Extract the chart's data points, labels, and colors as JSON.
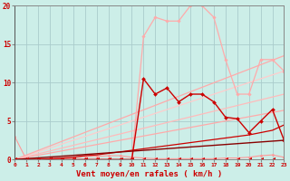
{
  "background_color": "#cceee8",
  "grid_color": "#aacccc",
  "x_min": 0,
  "x_max": 23,
  "y_min": 0,
  "y_max": 20,
  "xlabel": "Vent moyen/en rafales ( km/h )",
  "xlabel_color": "#cc0000",
  "tick_color": "#cc0000",
  "series": [
    {
      "x": [
        0,
        1,
        2,
        3,
        4,
        5,
        6,
        7,
        8,
        9,
        10,
        11,
        12,
        13,
        14,
        15,
        16,
        17,
        18,
        19,
        20,
        21,
        22,
        23
      ],
      "y": [
        3,
        0,
        0,
        0.1,
        0.2,
        0.3,
        0.4,
        0.4,
        0.5,
        0.5,
        0.3,
        0.2,
        0.1,
        0.1,
        0.1,
        0.1,
        0.1,
        0.1,
        0.2,
        0.2,
        0.3,
        0.5,
        0.6,
        0.3
      ],
      "color": "#ff9999",
      "lw": 0.8,
      "marker": "D",
      "ms": 1.5
    },
    {
      "x": [
        0,
        23
      ],
      "y": [
        0,
        6.4
      ],
      "color": "#ffaaaa",
      "lw": 0.9,
      "marker": null,
      "ms": 0
    },
    {
      "x": [
        0,
        23
      ],
      "y": [
        0,
        8.5
      ],
      "color": "#ffbbbb",
      "lw": 0.9,
      "marker": null,
      "ms": 0
    },
    {
      "x": [
        0,
        23
      ],
      "y": [
        0,
        11.5
      ],
      "color": "#ffcccc",
      "lw": 0.9,
      "marker": null,
      "ms": 0
    },
    {
      "x": [
        0,
        23
      ],
      "y": [
        0,
        13.5
      ],
      "color": "#ffaaaa",
      "lw": 0.9,
      "marker": null,
      "ms": 0
    },
    {
      "x": [
        0,
        1,
        2,
        3,
        4,
        5,
        6,
        7,
        8,
        9,
        10,
        11,
        12,
        13,
        14,
        15,
        16,
        17,
        18,
        19,
        20,
        21,
        22,
        23
      ],
      "y": [
        0,
        0,
        0,
        0,
        0,
        0,
        0,
        0,
        0,
        0,
        0,
        16.0,
        18.5,
        18.0,
        18.0,
        20.0,
        20.0,
        18.5,
        13.0,
        8.5,
        8.5,
        13.0,
        13.0,
        11.5
      ],
      "color": "#ffaaaa",
      "lw": 0.9,
      "marker": "D",
      "ms": 1.8
    },
    {
      "x": [
        0,
        1,
        2,
        3,
        4,
        5,
        6,
        7,
        8,
        9,
        10,
        11,
        12,
        13,
        14,
        15,
        16,
        17,
        18,
        19,
        20,
        21,
        22,
        23
      ],
      "y": [
        0,
        0,
        0,
        0,
        0,
        0,
        0,
        0,
        0,
        0,
        0,
        10.5,
        8.5,
        9.3,
        7.5,
        8.5,
        8.5,
        7.5,
        5.5,
        5.3,
        3.5,
        5.0,
        6.5,
        2.5
      ],
      "color": "#cc0000",
      "lw": 1.0,
      "marker": "D",
      "ms": 2.0
    },
    {
      "x": [
        0,
        1,
        2,
        3,
        4,
        5,
        6,
        7,
        8,
        9,
        10,
        11,
        12,
        13,
        14,
        15,
        16,
        17,
        18,
        19,
        20,
        21,
        22,
        23
      ],
      "y": [
        0,
        0,
        0,
        0.1,
        0.2,
        0.3,
        0.5,
        0.6,
        0.8,
        1.0,
        1.2,
        1.4,
        1.6,
        1.8,
        2.0,
        2.2,
        2.4,
        2.6,
        2.8,
        3.0,
        3.2,
        3.5,
        3.8,
        4.5
      ],
      "color": "#cc0000",
      "lw": 0.9,
      "marker": null,
      "ms": 0
    },
    {
      "x": [
        0,
        23
      ],
      "y": [
        0,
        2.5
      ],
      "color": "#880000",
      "lw": 1.0,
      "marker": null,
      "ms": 0
    },
    {
      "x": [
        0,
        1,
        2,
        3,
        4,
        5,
        6,
        7,
        8,
        9,
        10,
        11,
        12,
        13,
        14,
        15,
        16,
        17,
        18,
        19,
        20,
        21,
        22,
        23
      ],
      "y": [
        0,
        0,
        0,
        0,
        0,
        0,
        0,
        0,
        0,
        0,
        0,
        0,
        0,
        0,
        0,
        0,
        0,
        0,
        0,
        0,
        0,
        0,
        0,
        0
      ],
      "color": "#cc0000",
      "lw": 0.7,
      "marker": 4,
      "ms": 2.5
    }
  ]
}
